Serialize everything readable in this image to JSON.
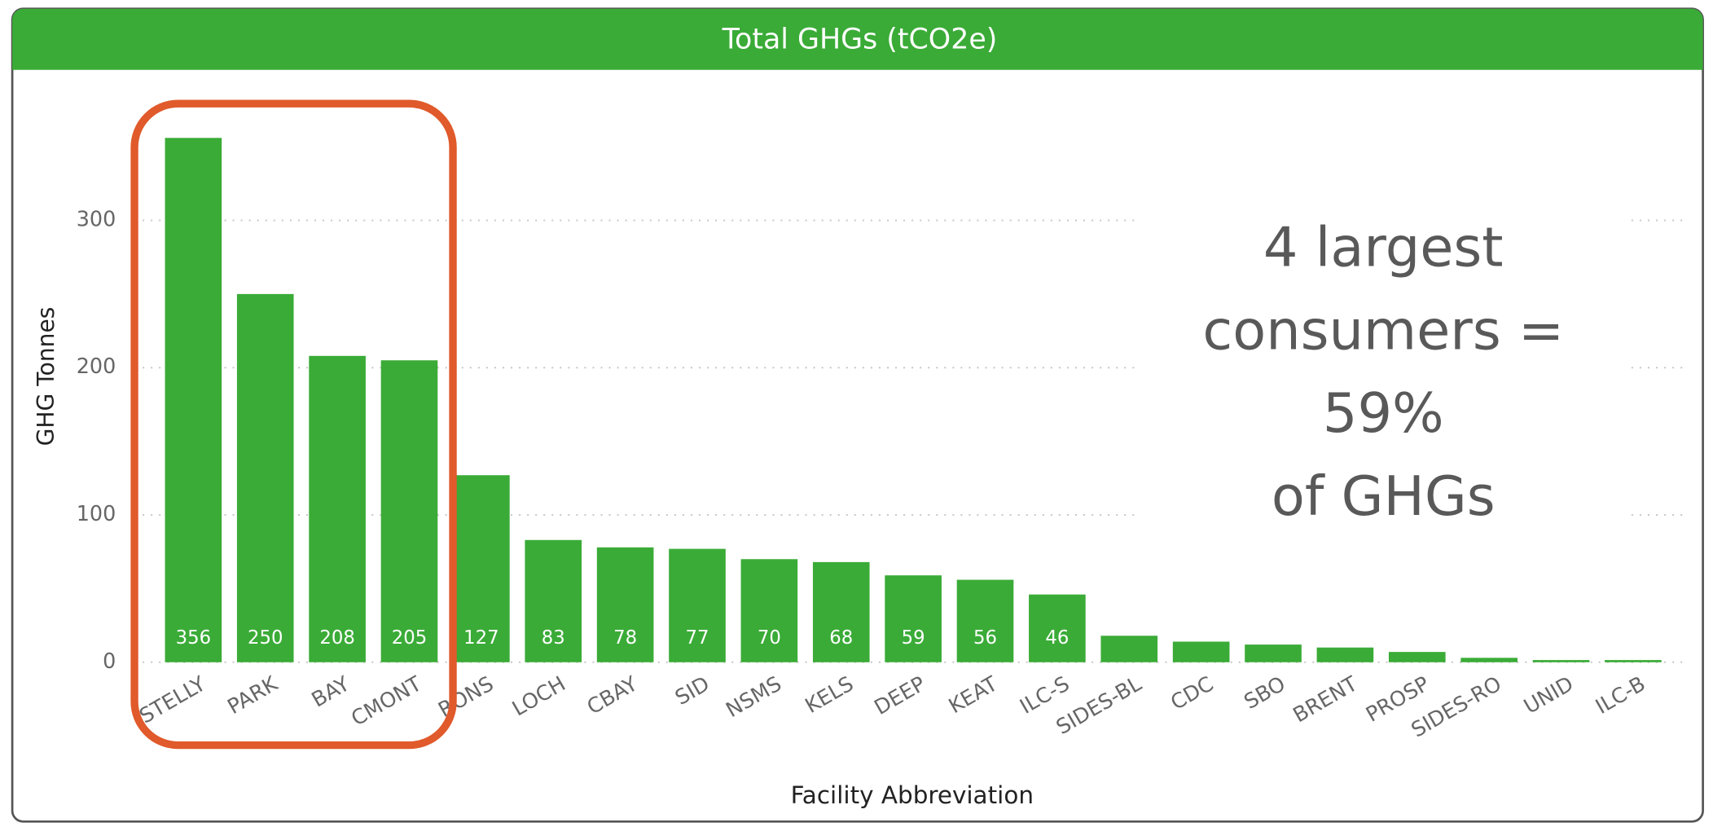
{
  "chart_data": {
    "type": "bar",
    "title": "Total GHGs (tCO2e)",
    "x_label": "Facility Abbreviation",
    "y_label": "GHG Tonnes",
    "categories": [
      "STELLY",
      "PARK",
      "BAY",
      "CMONT",
      "RONS",
      "LOCH",
      "CBAY",
      "SID",
      "NSMS",
      "KELS",
      "DEEP",
      "KEAT",
      "ILC-S",
      "SIDES-BL",
      "CDC",
      "SBO",
      "BRENT",
      "PROSP",
      "SIDES-RO",
      "UNID",
      "ILC-B"
    ],
    "values": [
      356,
      250,
      208,
      205,
      127,
      83,
      78,
      77,
      70,
      68,
      59,
      56,
      46,
      18,
      14,
      12,
      10,
      7,
      3,
      1.5,
      1.5
    ],
    "value_labels": [
      "356",
      "250",
      "208",
      "205",
      "127",
      "83",
      "78",
      "77",
      "70",
      "68",
      "59",
      "56",
      "46",
      null,
      null,
      null,
      null,
      null,
      null,
      null,
      null
    ],
    "color": "#3aab37",
    "ylim": [
      0,
      370
    ],
    "yticks": [
      0,
      100,
      200,
      300
    ],
    "grid": true,
    "annotation": [
      "4 largest",
      "consumers =",
      "59%",
      "of GHGs"
    ]
  }
}
